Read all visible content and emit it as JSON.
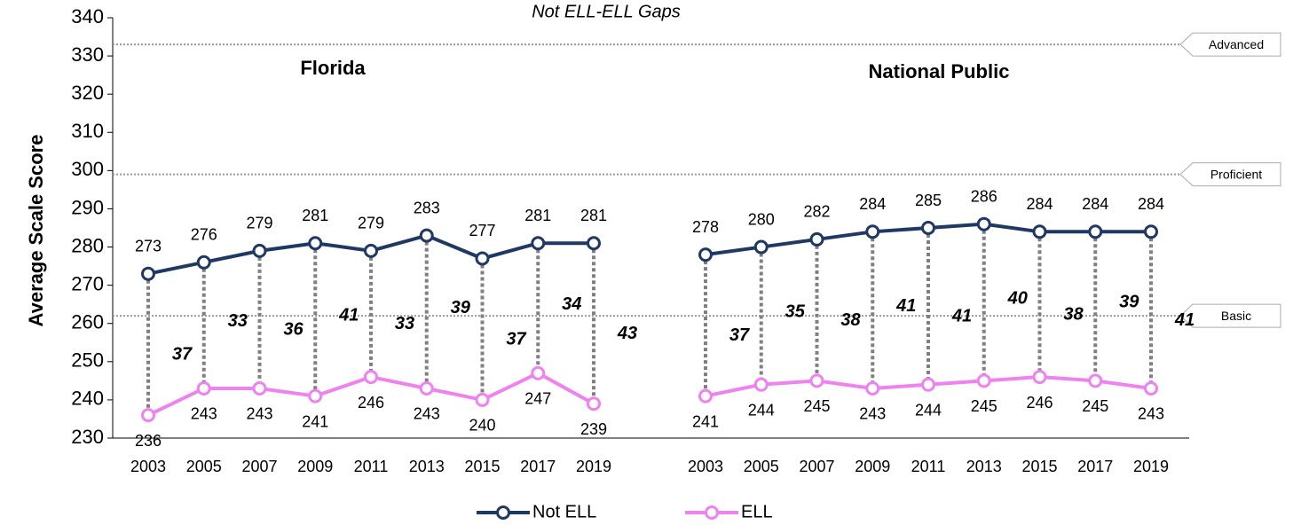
{
  "chart_data": {
    "type": "line",
    "title": "Not ELL-ELL Gaps",
    "y_label": "Average Scale Score",
    "ylim": [
      230,
      340
    ],
    "yticks": [
      230,
      240,
      250,
      260,
      270,
      280,
      290,
      300,
      310,
      320,
      330,
      340
    ],
    "legend": [
      {
        "name": "Not ELL",
        "color": "#1f3864"
      },
      {
        "name": "ELL",
        "color": "#ee82ee"
      }
    ],
    "reference_lines": [
      {
        "label": "Advanced",
        "value": 333
      },
      {
        "label": "Proficient",
        "value": 299
      },
      {
        "label": "Basic",
        "value": 262
      }
    ],
    "panels": [
      {
        "title": "Florida",
        "categories": [
          "2003",
          "2005",
          "2007",
          "2009",
          "2011",
          "2013",
          "2015",
          "2017",
          "2019"
        ],
        "series": [
          {
            "values": [
              273,
              276,
              279,
              281,
              279,
              283,
              277,
              281,
              281
            ]
          },
          {
            "values": [
              236,
              243,
              243,
              241,
              246,
              243,
              240,
              247,
              239
            ]
          }
        ],
        "gaps": [
          37,
          33,
          36,
          41,
          33,
          39,
          37,
          34,
          43
        ]
      },
      {
        "title": "National Public",
        "categories": [
          "2003",
          "2005",
          "2007",
          "2009",
          "2011",
          "2013",
          "2015",
          "2017",
          "2019"
        ],
        "series": [
          {
            "values": [
              278,
              280,
              282,
              284,
              285,
              286,
              284,
              284,
              284
            ]
          },
          {
            "values": [
              241,
              244,
              245,
              243,
              244,
              245,
              246,
              245,
              243
            ]
          }
        ],
        "gaps": [
          37,
          35,
          38,
          41,
          41,
          40,
          38,
          39,
          41
        ]
      }
    ]
  }
}
